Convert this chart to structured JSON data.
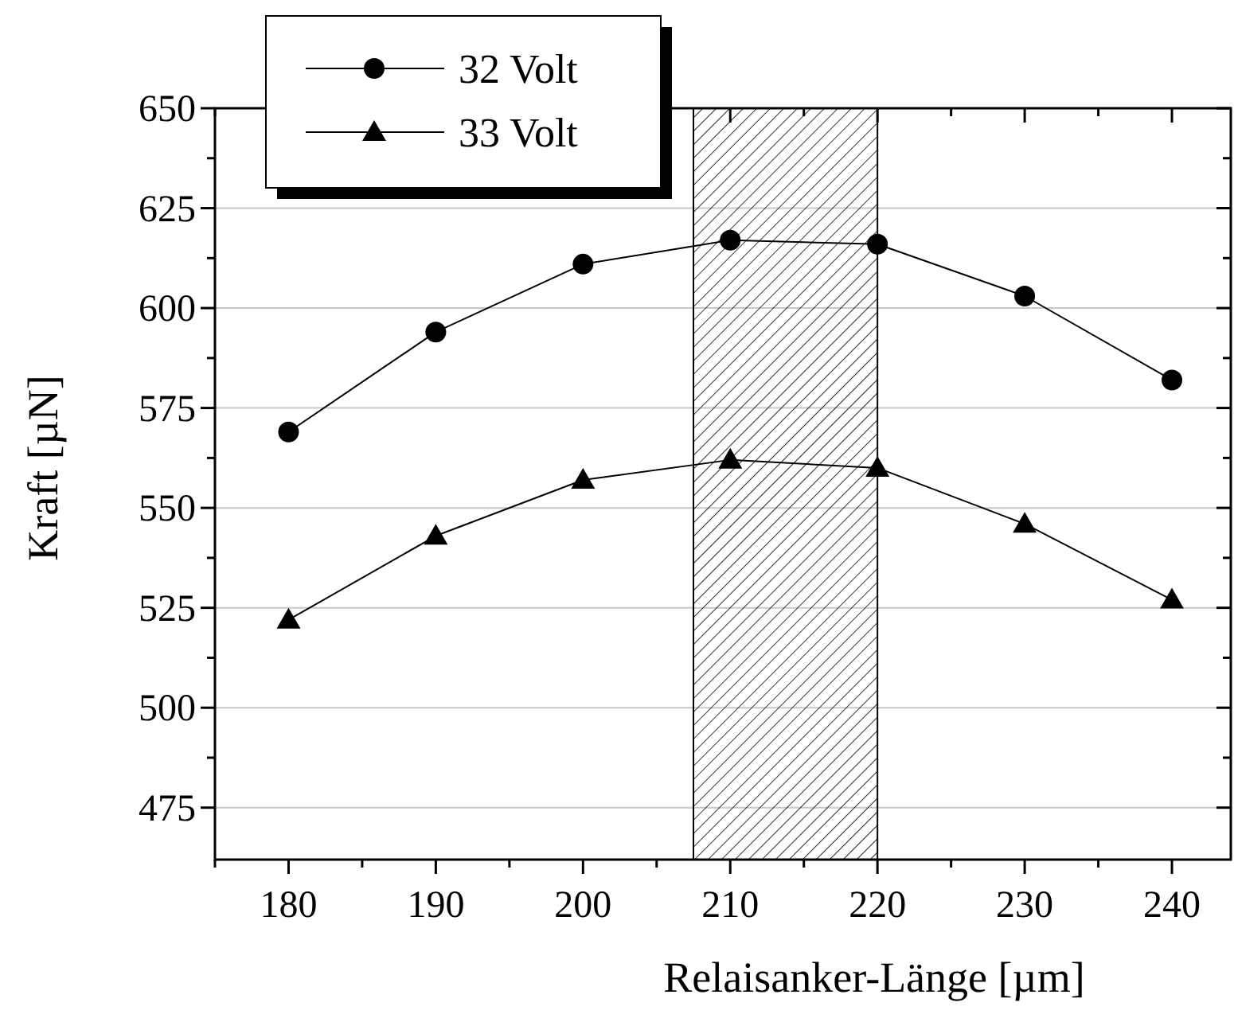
{
  "chart_data": {
    "type": "line",
    "xlabel": "Relaisanker-Länge [µm]",
    "ylabel": "Kraft [µN]",
    "x": [
      180,
      190,
      200,
      210,
      220,
      230,
      240
    ],
    "series": [
      {
        "name": "32 Volt",
        "color": "#000000",
        "marker": "circle",
        "values": [
          569,
          594,
          611,
          617,
          616,
          603,
          582
        ]
      },
      {
        "name": "33 Volt",
        "color": "#000000",
        "marker": "triangle",
        "values": [
          522,
          543,
          557,
          562,
          560,
          546,
          527
        ]
      }
    ],
    "xlim": [
      175,
      244
    ],
    "ylim": [
      462,
      650
    ],
    "xticks": [
      {
        "value": 175,
        "label": null
      },
      180,
      {
        "value": 185,
        "label": null
      },
      190,
      {
        "value": 195,
        "label": null
      },
      200,
      {
        "value": 205,
        "label": null
      },
      210,
      {
        "value": 215,
        "label": null
      },
      220,
      {
        "value": 225,
        "label": null
      },
      230,
      {
        "value": 235,
        "label": null
      },
      240
    ],
    "yticks": [
      475,
      {
        "value": 487.5,
        "label": null
      },
      500,
      {
        "value": 512.5,
        "label": null
      },
      525,
      {
        "value": 537.5,
        "label": null
      },
      550,
      {
        "value": 562.5,
        "label": null
      },
      575,
      {
        "value": 587.5,
        "label": null
      },
      600,
      {
        "value": 612.5,
        "label": null
      },
      625,
      {
        "value": 637.5,
        "label": null
      },
      650
    ],
    "bands": [
      {
        "axis": "x",
        "from": 207.5,
        "to": 220,
        "color": "#000000"
      }
    ],
    "grid": "y",
    "legend": "top left",
    "line_style": "solid"
  }
}
